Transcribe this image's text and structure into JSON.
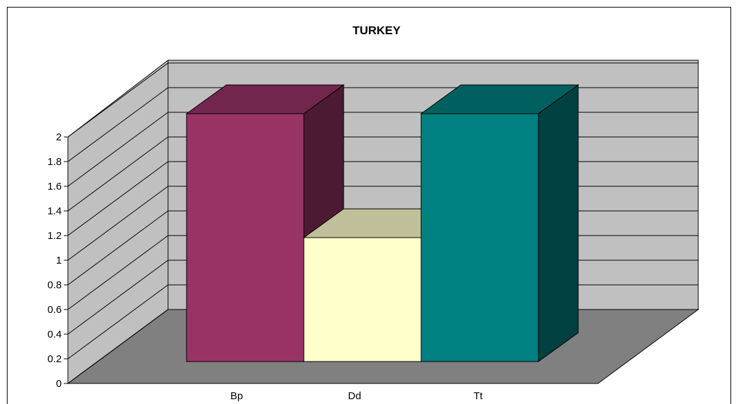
{
  "chart_data": {
    "type": "bar",
    "title": "TURKEY",
    "categories": [
      "Bp",
      "Dd",
      "Tt"
    ],
    "values": [
      2,
      1,
      2
    ],
    "ylim": [
      0,
      2
    ],
    "yticks": [
      "0",
      "0.2",
      "0.4",
      "0.6",
      "0.8",
      "1",
      "1.2",
      "1.4",
      "1.6",
      "1.8",
      "2"
    ],
    "grid": true,
    "legend": "none",
    "style": "3d-column",
    "colors": {
      "series": [
        "#993366",
        "#FFFFCC",
        "#008080"
      ],
      "back_wall": "#C0C0C0",
      "side_wall": "#C0C0C0",
      "floor": "#808080"
    }
  }
}
